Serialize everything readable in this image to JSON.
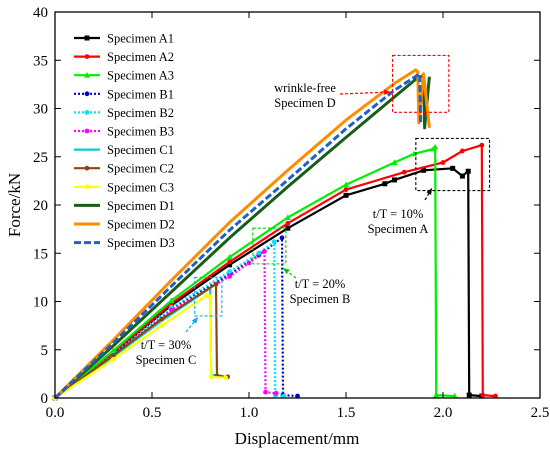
{
  "chart_data": {
    "type": "line",
    "xlabel": "Displacement/mm",
    "ylabel": "Force/kN",
    "xlim": [
      0,
      2.5
    ],
    "ylim": [
      0,
      40
    ],
    "xticks": [
      "0.0",
      "0.5",
      "1.0",
      "1.5",
      "2.0",
      "2.5"
    ],
    "yticks": [
      "0",
      "5",
      "10",
      "15",
      "20",
      "25",
      "30",
      "35",
      "40"
    ],
    "grid": false,
    "legend_position": "top-left",
    "series": [
      {
        "name": "Specimen A1",
        "color": "#000000",
        "dash": "solid",
        "marker": "square",
        "points": [
          [
            0,
            0
          ],
          [
            0.3,
            4.6
          ],
          [
            0.6,
            9.6
          ],
          [
            0.9,
            13.8
          ],
          [
            1.2,
            17.6
          ],
          [
            1.5,
            21.0
          ],
          [
            1.7,
            22.2
          ],
          [
            1.75,
            22.6
          ],
          [
            1.9,
            23.6
          ],
          [
            2.05,
            23.8
          ],
          [
            2.1,
            23.0
          ],
          [
            2.13,
            23.5
          ],
          [
            2.135,
            0.3
          ],
          [
            2.2,
            0.2
          ]
        ]
      },
      {
        "name": "Specimen A2",
        "color": "#ff0000",
        "dash": "solid",
        "marker": "circle",
        "points": [
          [
            0,
            0
          ],
          [
            0.3,
            4.7
          ],
          [
            0.6,
            9.8
          ],
          [
            0.9,
            14.1
          ],
          [
            1.2,
            18.1
          ],
          [
            1.5,
            21.6
          ],
          [
            1.8,
            23.4
          ],
          [
            2.0,
            24.4
          ],
          [
            2.1,
            25.6
          ],
          [
            2.2,
            26.2
          ],
          [
            2.205,
            0.3
          ],
          [
            2.27,
            0.2
          ]
        ]
      },
      {
        "name": "Specimen A3",
        "color": "#00ee00",
        "dash": "solid",
        "marker": "triangle",
        "points": [
          [
            0,
            0
          ],
          [
            0.3,
            4.9
          ],
          [
            0.6,
            10.1
          ],
          [
            0.9,
            14.6
          ],
          [
            1.2,
            18.7
          ],
          [
            1.5,
            22.1
          ],
          [
            1.75,
            24.4
          ],
          [
            1.85,
            25.3
          ],
          [
            1.95,
            25.8
          ],
          [
            1.96,
            26.0
          ],
          [
            1.965,
            0.3
          ],
          [
            2.06,
            0.2
          ]
        ]
      },
      {
        "name": "Specimen B1",
        "color": "#0000cc",
        "dash": "dot",
        "marker": "circle",
        "points": [
          [
            0,
            0
          ],
          [
            0.3,
            4.4
          ],
          [
            0.6,
            9.2
          ],
          [
            0.9,
            12.8
          ],
          [
            1.05,
            14.8
          ],
          [
            1.17,
            16.6
          ],
          [
            1.175,
            0.3
          ],
          [
            1.25,
            0.2
          ]
        ]
      },
      {
        "name": "Specimen B2",
        "color": "#00e5ee",
        "dash": "dot",
        "marker": "circle",
        "points": [
          [
            0,
            0
          ],
          [
            0.3,
            4.5
          ],
          [
            0.6,
            9.4
          ],
          [
            0.9,
            13.1
          ],
          [
            1.05,
            15.0
          ],
          [
            1.13,
            16.2
          ],
          [
            1.135,
            0.3
          ],
          [
            1.18,
            0.2
          ]
        ]
      },
      {
        "name": "Specimen B3",
        "color": "#ff00ff",
        "dash": "dot",
        "marker": "circle",
        "points": [
          [
            0,
            0
          ],
          [
            0.3,
            4.4
          ],
          [
            0.6,
            9.1
          ],
          [
            0.9,
            12.6
          ],
          [
            1.0,
            14.0
          ],
          [
            1.08,
            15.2
          ],
          [
            1.085,
            0.6
          ],
          [
            1.14,
            0.5
          ]
        ]
      },
      {
        "name": "Specimen C1",
        "color": "#00ced1",
        "dash": "solid",
        "marker": "none",
        "points": [
          [
            0,
            0
          ],
          [
            0.3,
            4.3
          ],
          [
            0.55,
            8.0
          ],
          [
            0.8,
            11.4
          ],
          [
            0.805,
            2.4
          ],
          [
            0.86,
            2.3
          ]
        ]
      },
      {
        "name": "Specimen C2",
        "color": "#8b4513",
        "dash": "solid",
        "marker": "circle",
        "points": [
          [
            0,
            0
          ],
          [
            0.3,
            4.4
          ],
          [
            0.55,
            8.2
          ],
          [
            0.83,
            11.8
          ],
          [
            0.835,
            2.3
          ],
          [
            0.89,
            2.2
          ]
        ]
      },
      {
        "name": "Specimen C3",
        "color": "#ffff00",
        "dash": "solid",
        "marker": "circle",
        "points": [
          [
            0,
            0
          ],
          [
            0.3,
            4.0
          ],
          [
            0.55,
            7.5
          ],
          [
            0.78,
            10.6
          ],
          [
            0.8,
            10.5
          ],
          [
            0.805,
            2.2
          ],
          [
            0.88,
            2.1
          ]
        ]
      },
      {
        "name": "Specimen D1",
        "color": "#1a5c1a",
        "dash": "solid",
        "marker": "none",
        "points": [
          [
            0,
            0
          ],
          [
            0.3,
            5.4
          ],
          [
            0.6,
            11.0
          ],
          [
            0.9,
            16.6
          ],
          [
            1.2,
            21.9
          ],
          [
            1.5,
            27.0
          ],
          [
            1.75,
            31.2
          ],
          [
            1.87,
            33.2
          ],
          [
            1.9,
            33.4
          ],
          [
            1.905,
            28.0
          ],
          [
            1.93,
            33.3
          ]
        ]
      },
      {
        "name": "Specimen D2",
        "color": "#ff8c00",
        "dash": "solid",
        "marker": "none",
        "points": [
          [
            0,
            0
          ],
          [
            0.3,
            6.0
          ],
          [
            0.6,
            12.2
          ],
          [
            0.9,
            18.2
          ],
          [
            1.2,
            23.6
          ],
          [
            1.5,
            28.8
          ],
          [
            1.75,
            32.6
          ],
          [
            1.86,
            34.0
          ],
          [
            1.87,
            33.8
          ],
          [
            1.875,
            28.5
          ],
          [
            1.9,
            33.6
          ],
          [
            1.93,
            28.0
          ]
        ]
      },
      {
        "name": "Specimen D3",
        "color": "#1e5fc8",
        "dash": "dash",
        "marker": "none",
        "points": [
          [
            0,
            0
          ],
          [
            0.3,
            5.7
          ],
          [
            0.6,
            11.6
          ],
          [
            0.9,
            17.4
          ],
          [
            1.2,
            22.6
          ],
          [
            1.5,
            27.9
          ],
          [
            1.75,
            31.9
          ],
          [
            1.88,
            33.6
          ],
          [
            1.885,
            28.5
          ]
        ]
      }
    ],
    "annotations": [
      {
        "id": "d",
        "lines": [
          "wrinkle-free",
          "Specimen D"
        ]
      },
      {
        "id": "a",
        "lines": [
          "t/T = 10%",
          "Specimen A"
        ]
      },
      {
        "id": "b",
        "lines": [
          "t/T = 20%",
          "Specimen B"
        ]
      },
      {
        "id": "c",
        "lines": [
          "t/T = 30%",
          "Specimen C"
        ]
      }
    ]
  }
}
